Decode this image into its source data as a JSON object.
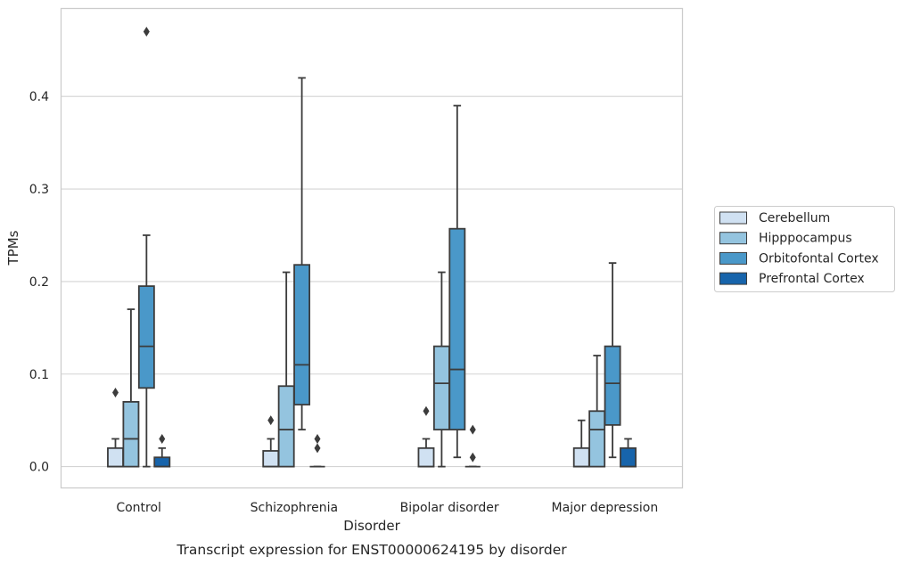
{
  "chart_data": {
    "type": "boxplot",
    "xlabel": "Disorder",
    "ylabel": "TPMs",
    "caption": "Transcript expression for ENST00000624195 by disorder",
    "categories": [
      "Control",
      "Schizophrenia",
      "Bipolar disorder",
      "Major depression"
    ],
    "ylim": [
      -0.023,
      0.495
    ],
    "yticks": [
      "0.0",
      "0.1",
      "0.2",
      "0.3",
      "0.4"
    ],
    "ytick_values": [
      0,
      0.1,
      0.2,
      0.3,
      0.4
    ],
    "grid": "horizontal",
    "legend_position": "right",
    "series": [
      {
        "name": "Cerebellum",
        "color": "#d0e1f2",
        "boxes": [
          {
            "q1": 0.0,
            "median": 0.0,
            "q3": 0.02,
            "whislo": 0.0,
            "whishi": 0.03,
            "fliers": [
              0.08
            ]
          },
          {
            "q1": 0.0,
            "median": 0.0,
            "q3": 0.017,
            "whislo": 0.0,
            "whishi": 0.03,
            "fliers": [
              0.05
            ]
          },
          {
            "q1": 0.0,
            "median": 0.0,
            "q3": 0.02,
            "whislo": 0.0,
            "whishi": 0.03,
            "fliers": [
              0.06
            ]
          },
          {
            "q1": 0.0,
            "median": 0.0,
            "q3": 0.02,
            "whislo": 0.0,
            "whishi": 0.05,
            "fliers": []
          }
        ]
      },
      {
        "name": "Hipppocampus",
        "color": "#94c4df",
        "boxes": [
          {
            "q1": 0.0,
            "median": 0.03,
            "q3": 0.07,
            "whislo": 0.0,
            "whishi": 0.17,
            "fliers": []
          },
          {
            "q1": 0.0,
            "median": 0.04,
            "q3": 0.087,
            "whislo": 0.0,
            "whishi": 0.21,
            "fliers": []
          },
          {
            "q1": 0.04,
            "median": 0.09,
            "q3": 0.13,
            "whislo": 0.0,
            "whishi": 0.21,
            "fliers": []
          },
          {
            "q1": 0.0,
            "median": 0.04,
            "q3": 0.06,
            "whislo": 0.0,
            "whishi": 0.12,
            "fliers": []
          }
        ]
      },
      {
        "name": "Orbitofontal Cortex",
        "color": "#4a98c9",
        "boxes": [
          {
            "q1": 0.085,
            "median": 0.13,
            "q3": 0.195,
            "whislo": 0.0,
            "whishi": 0.25,
            "fliers": [
              0.47
            ]
          },
          {
            "q1": 0.067,
            "median": 0.11,
            "q3": 0.218,
            "whislo": 0.04,
            "whishi": 0.42,
            "fliers": []
          },
          {
            "q1": 0.04,
            "median": 0.105,
            "q3": 0.257,
            "whislo": 0.01,
            "whishi": 0.39,
            "fliers": []
          },
          {
            "q1": 0.045,
            "median": 0.09,
            "q3": 0.13,
            "whislo": 0.01,
            "whishi": 0.22,
            "fliers": []
          }
        ]
      },
      {
        "name": "Prefrontal Cortex",
        "color": "#1764ab",
        "boxes": [
          {
            "q1": 0.0,
            "median": 0.0,
            "q3": 0.01,
            "whislo": 0.0,
            "whishi": 0.02,
            "fliers": [
              0.03
            ]
          },
          {
            "q1": 0.0,
            "median": 0.0,
            "q3": 0.0,
            "whislo": 0.0,
            "whishi": 0.0,
            "fliers": [
              0.03,
              0.02
            ]
          },
          {
            "q1": 0.0,
            "median": 0.0,
            "q3": 0.0,
            "whislo": 0.0,
            "whishi": 0.0,
            "fliers": [
              0.04,
              0.01
            ]
          },
          {
            "q1": 0.0,
            "median": 0.0,
            "q3": 0.02,
            "whislo": 0.0,
            "whishi": 0.03,
            "fliers": []
          }
        ]
      }
    ]
  }
}
